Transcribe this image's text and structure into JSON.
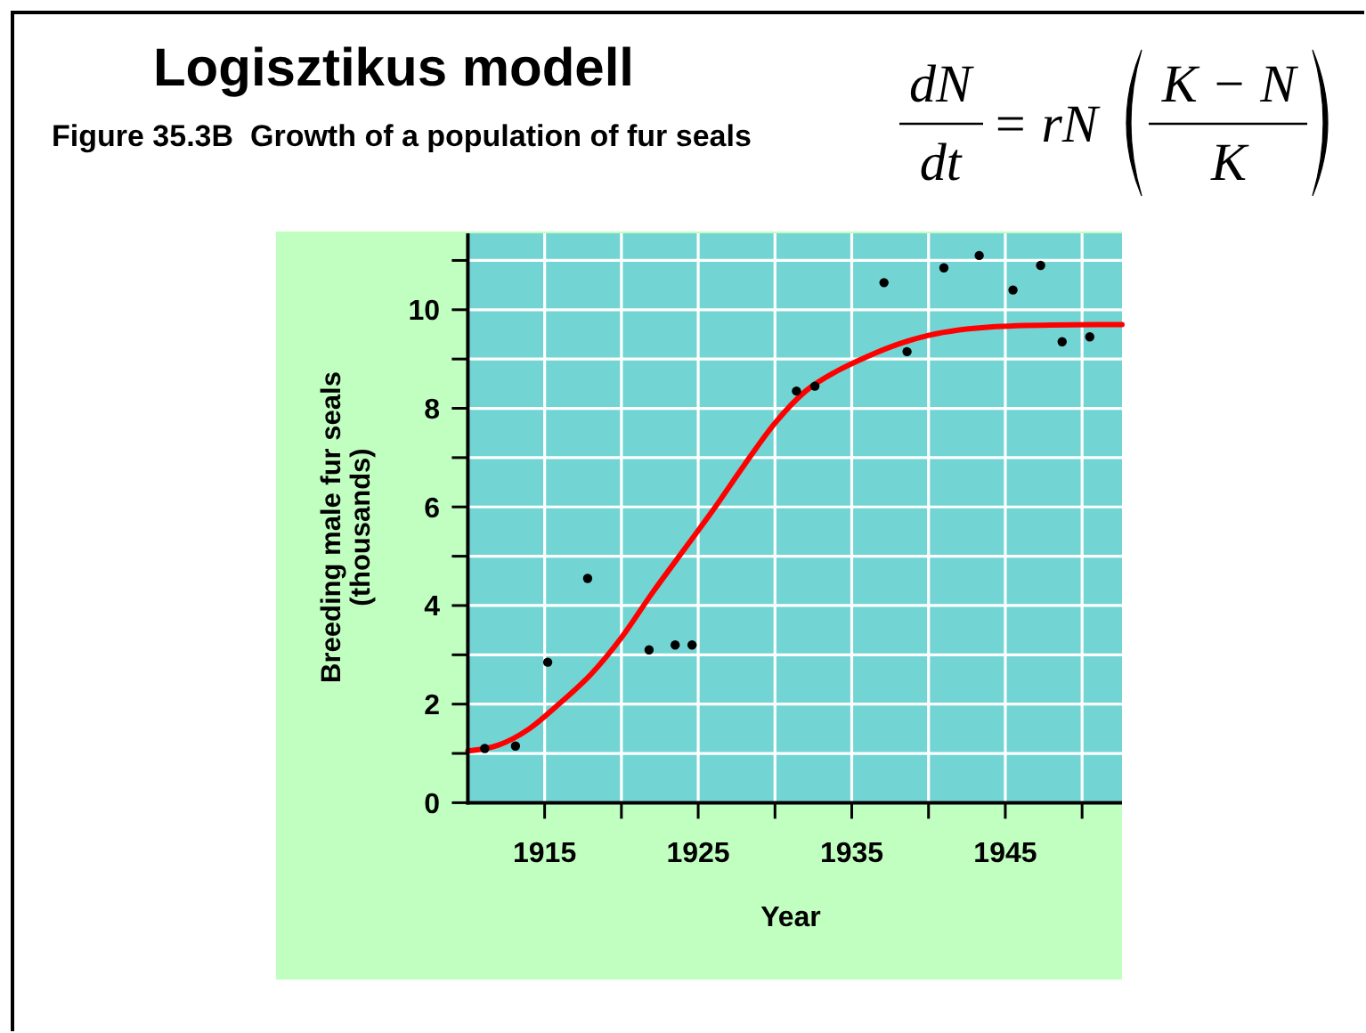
{
  "chart_data": {
    "type": "scatter",
    "title": "Logisztikus modell",
    "subtitle": "Figure 35.3B  Growth of a population of fur seals",
    "xlabel": "Year",
    "ylabel": "Breeding male fur seals\n(thousands)",
    "annotations": [
      "dN",
      "dt",
      "= rN",
      "K − N",
      "K"
    ],
    "xlim": [
      1910,
      1952.6
    ],
    "ylim": [
      0,
      11.55
    ],
    "xticks": [
      1915,
      {
        "value": 1920,
        "label": null
      },
      1925,
      {
        "value": 1930,
        "label": null
      },
      1935,
      {
        "value": 1940,
        "label": null
      },
      1945,
      {
        "value": 1950,
        "label": null
      }
    ],
    "yticks": [
      0,
      {
        "value": 1,
        "label": null
      },
      2,
      {
        "value": 3,
        "label": null
      },
      4,
      {
        "value": 5,
        "label": null
      },
      6,
      {
        "value": 7,
        "label": null
      },
      8,
      {
        "value": 9,
        "label": null
      },
      10,
      {
        "value": 11,
        "label": null
      }
    ],
    "grid": true,
    "series": [
      {
        "color": "#000000",
        "marker": "circle",
        "x": [
          1911.1,
          1913.1,
          1915.2,
          1917.8,
          1921.8,
          1923.5,
          1924.6,
          1931.4,
          1932.6,
          1937.1,
          1938.6,
          1941.0,
          1943.3,
          1945.5,
          1947.3,
          1948.7,
          1950.5
        ],
        "values": [
          1.1,
          1.15,
          2.85,
          4.55,
          3.1,
          3.2,
          3.2,
          8.35,
          8.45,
          10.55,
          9.15,
          10.85,
          11.1,
          10.4,
          10.9,
          9.35,
          9.45
        ]
      },
      {
        "type": "line",
        "color": "#ff0000",
        "x": [
          1910,
          1912,
          1914,
          1916,
          1918,
          1920,
          1922,
          1924,
          1926,
          1928,
          1930,
          1932,
          1934,
          1936,
          1938,
          1940,
          1942,
          1944,
          1948,
          1952.6
        ],
        "values": [
          1.05,
          1.17,
          1.5,
          2.02,
          2.6,
          3.35,
          4.25,
          5.1,
          5.95,
          6.85,
          7.7,
          8.35,
          8.75,
          9.05,
          9.3,
          9.48,
          9.59,
          9.65,
          9.69,
          9.7
        ]
      }
    ]
  }
}
